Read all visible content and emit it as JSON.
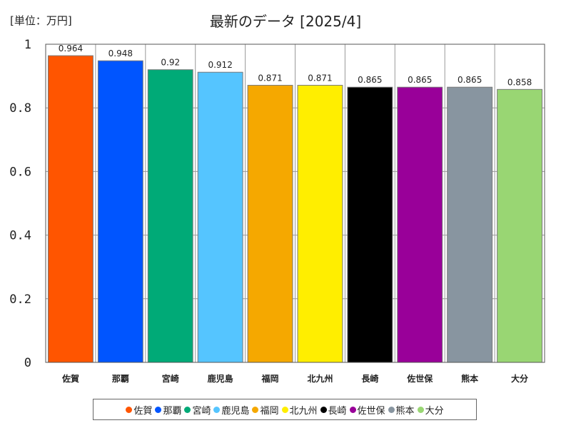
{
  "header": {
    "unit_label": "[単位：万円]",
    "title": "最新のデータ [2025/4]"
  },
  "chart_data": {
    "type": "bar",
    "title": "最新のデータ [2025/4]",
    "unit": "[単位：万円]",
    "categories": [
      "佐賀",
      "那覇",
      "宮崎",
      "鹿児島",
      "福岡",
      "北九州",
      "長崎",
      "佐世保",
      "熊本",
      "大分"
    ],
    "values": [
      0.964,
      0.948,
      0.92,
      0.912,
      0.871,
      0.871,
      0.865,
      0.865,
      0.865,
      0.858
    ],
    "value_labels": [
      "0.964",
      "0.948",
      "0.92",
      "0.912",
      "0.871",
      "0.871",
      "0.865",
      "0.865",
      "0.865",
      "0.858"
    ],
    "colors": [
      "#ff5500",
      "#0055ff",
      "#00aa77",
      "#55c5ff",
      "#f5a800",
      "#ffee00",
      "#000000",
      "#990099",
      "#8895a0",
      "#99d673"
    ],
    "ylim": [
      0,
      1
    ],
    "yticks": [
      0,
      0.2,
      0.4,
      0.6,
      0.8,
      1
    ],
    "ytick_labels": [
      "0",
      "0.2",
      "0.4",
      "0.6",
      "0.8",
      "1"
    ],
    "grid": true,
    "legend_position": "bottom"
  }
}
